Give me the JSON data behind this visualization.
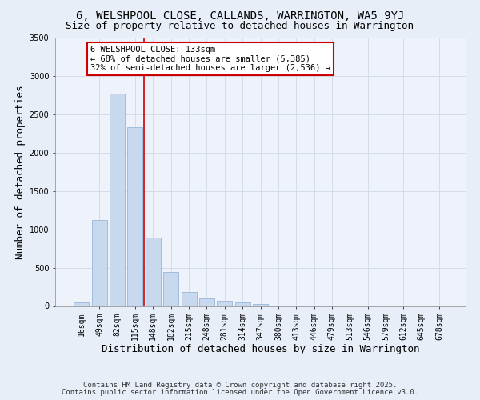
{
  "title": "6, WELSHPOOL CLOSE, CALLANDS, WARRINGTON, WA5 9YJ",
  "subtitle": "Size of property relative to detached houses in Warrington",
  "xlabel": "Distribution of detached houses by size in Warrington",
  "ylabel": "Number of detached properties",
  "bar_labels": [
    "16sqm",
    "49sqm",
    "82sqm",
    "115sqm",
    "148sqm",
    "182sqm",
    "215sqm",
    "248sqm",
    "281sqm",
    "314sqm",
    "347sqm",
    "380sqm",
    "413sqm",
    "446sqm",
    "479sqm",
    "513sqm",
    "546sqm",
    "579sqm",
    "612sqm",
    "645sqm",
    "678sqm"
  ],
  "bar_values": [
    50,
    1125,
    2775,
    2340,
    890,
    440,
    185,
    100,
    70,
    50,
    30,
    5,
    3,
    2,
    1,
    0,
    0,
    0,
    0,
    0,
    0
  ],
  "bar_color": "#c8d8ee",
  "bar_edgecolor": "#8aaed4",
  "vline_x": 3.5,
  "vline_color": "#cc0000",
  "annotation_title": "6 WELSHPOOL CLOSE: 133sqm",
  "annotation_line1": "← 68% of detached houses are smaller (5,385)",
  "annotation_line2": "32% of semi-detached houses are larger (2,536) →",
  "annotation_box_edgecolor": "#cc0000",
  "ylim": [
    0,
    3500
  ],
  "yticks": [
    0,
    500,
    1000,
    1500,
    2000,
    2500,
    3000,
    3500
  ],
  "footnote1": "Contains HM Land Registry data © Crown copyright and database right 2025.",
  "footnote2": "Contains public sector information licensed under the Open Government Licence v3.0.",
  "bg_color": "#e8eef8",
  "plot_bg_color": "#eef2fa",
  "grid_color": "#d0d8e8",
  "title_fontsize": 10,
  "subtitle_fontsize": 9,
  "axis_label_fontsize": 9,
  "tick_fontsize": 7,
  "footnote_fontsize": 6.5,
  "annot_fontsize": 7.5
}
